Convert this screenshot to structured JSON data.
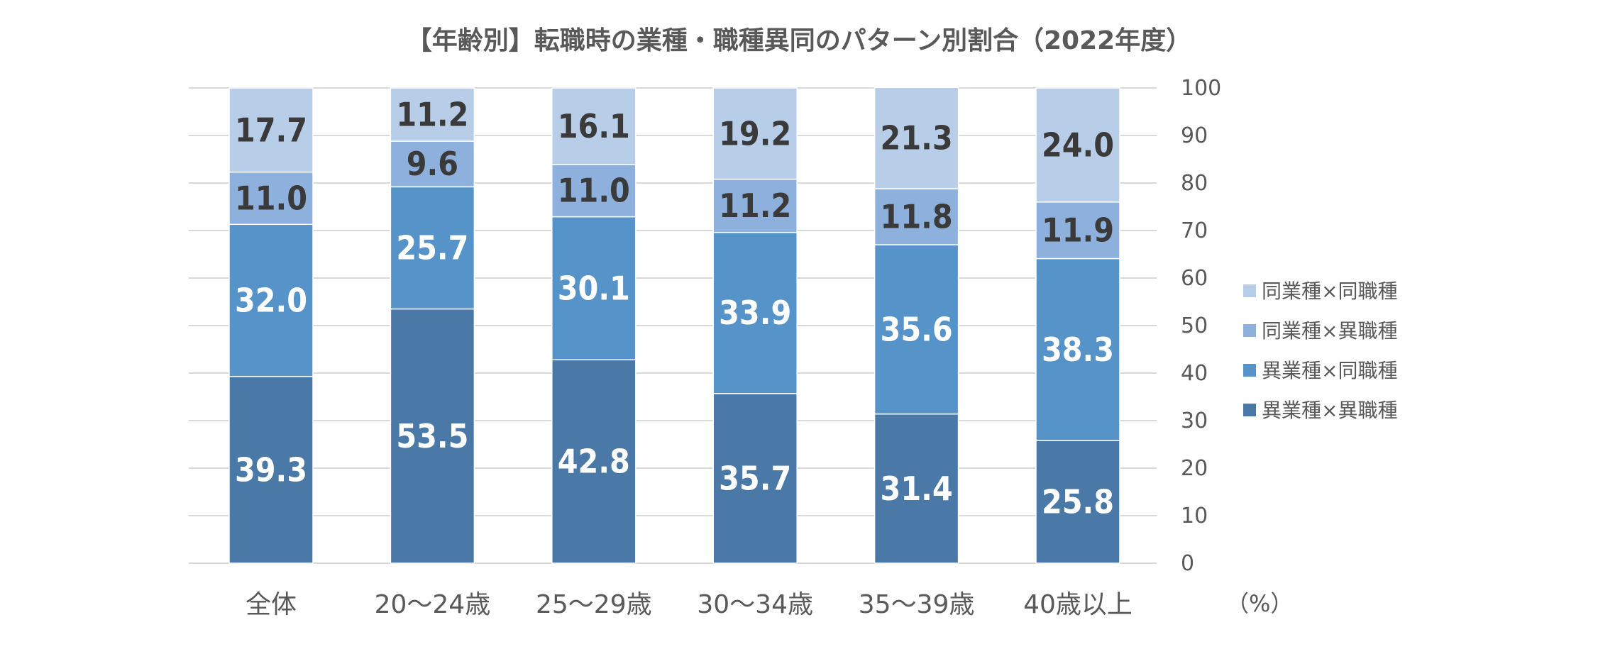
{
  "chart_data": {
    "type": "bar",
    "stacked": true,
    "title": "【年齢別】転職時の業種・職種異同のパターン別割合（2022年度）",
    "categories": [
      "全体",
      "20～24歳",
      "25～29歳",
      "30～34歳",
      "35～39歳",
      "40歳以上"
    ],
    "series": [
      {
        "name": "異業種×異職種",
        "color": "#4a79a8",
        "label_color": "#ffffff",
        "values": [
          39.3,
          53.5,
          42.8,
          35.7,
          31.4,
          25.8
        ]
      },
      {
        "name": "異業種×同職種",
        "color": "#5593c8",
        "label_color": "#ffffff",
        "values": [
          32.0,
          25.7,
          30.1,
          33.9,
          35.6,
          38.3
        ]
      },
      {
        "name": "同業種×異職種",
        "color": "#8db1dc",
        "label_color": "#3a3a3a",
        "values": [
          11.0,
          9.6,
          11.0,
          11.2,
          11.8,
          11.9
        ]
      },
      {
        "name": "同業種×同職種",
        "color": "#b8cde8",
        "label_color": "#3a3a3a",
        "values": [
          17.7,
          11.2,
          16.1,
          19.2,
          21.3,
          24.0
        ]
      }
    ],
    "ylim": [
      0,
      100
    ],
    "yticks": [
      0,
      10,
      20,
      30,
      40,
      50,
      60,
      70,
      80,
      90,
      100
    ],
    "y_axis_side": "right",
    "unit": "（%）",
    "grid": true,
    "legend_position": "right",
    "legend_order": [
      "同業種×同職種",
      "同業種×異職種",
      "異業種×同職種",
      "異業種×異職種"
    ]
  }
}
